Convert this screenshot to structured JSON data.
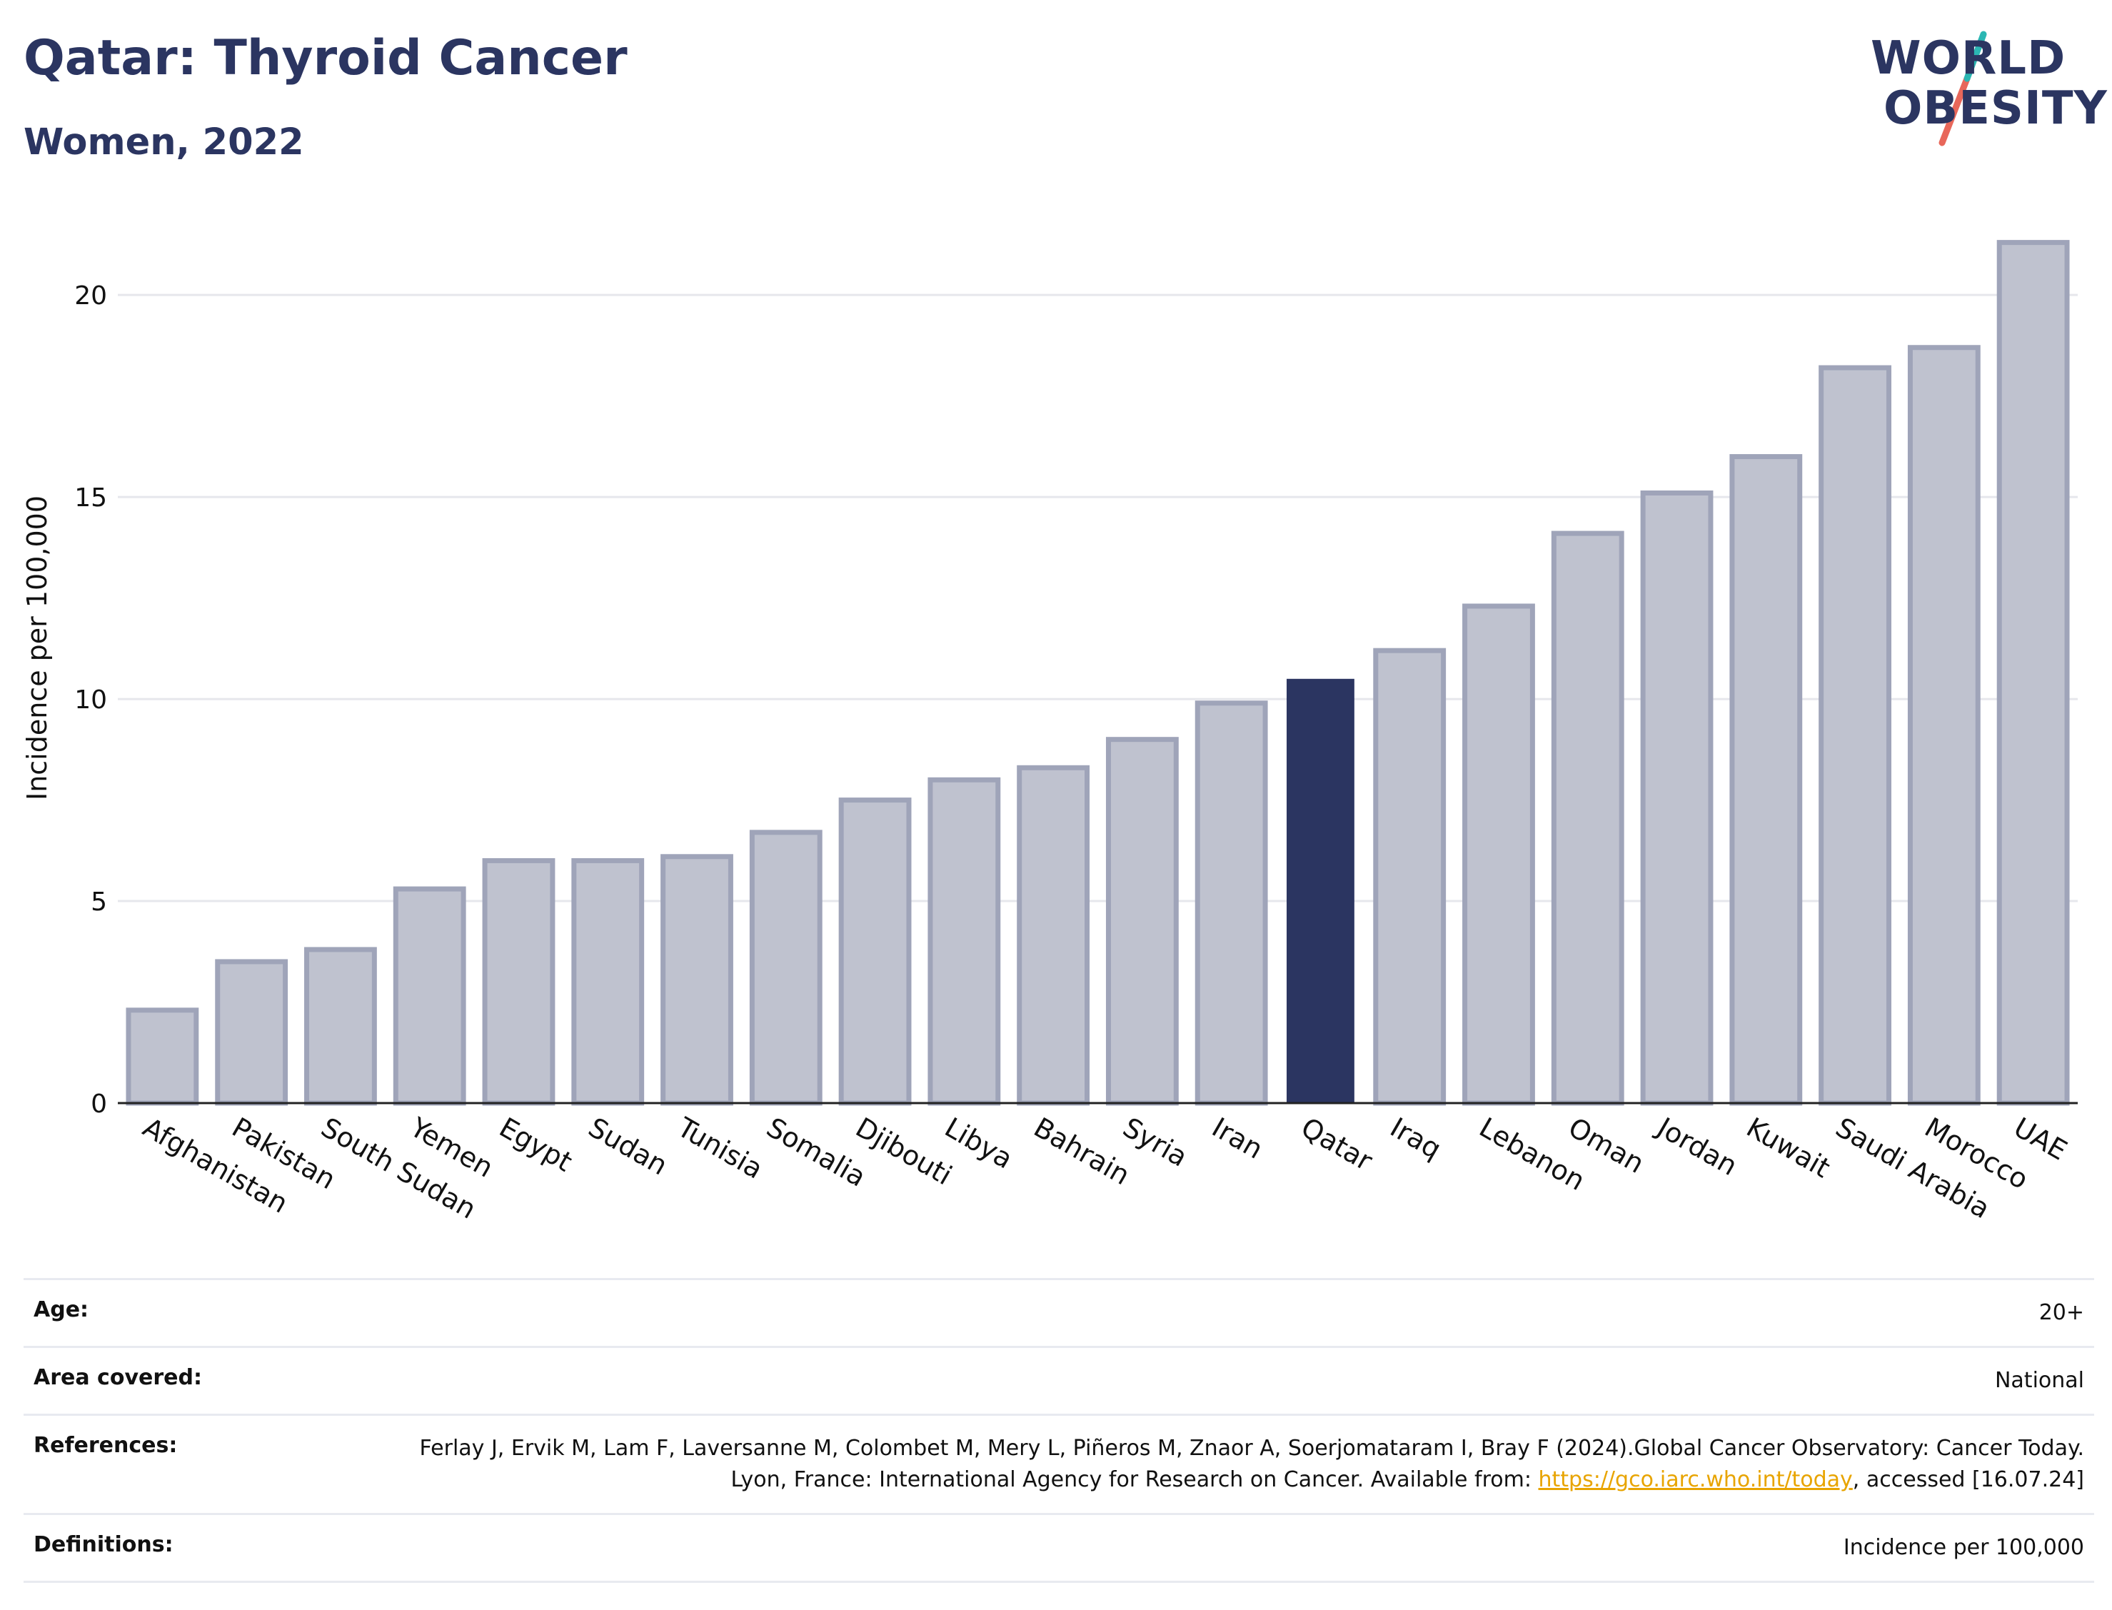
{
  "header": {
    "title": "Qatar: Thyroid Cancer",
    "subtitle": "Women, 2022"
  },
  "logo": {
    "line1": "WORLD",
    "line2": "OBESITY"
  },
  "chart_data": {
    "type": "bar",
    "categories": [
      "Afghanistan",
      "Pakistan",
      "South Sudan",
      "Yemen",
      "Egypt",
      "Sudan",
      "Tunisia",
      "Somalia",
      "Djibouti",
      "Libya",
      "Bahrain",
      "Syria",
      "Iran",
      "Qatar",
      "Iraq",
      "Lebanon",
      "Oman",
      "Jordan",
      "Kuwait",
      "Saudi Arabia",
      "Morocco",
      "UAE"
    ],
    "values": [
      2.3,
      3.5,
      3.8,
      5.3,
      6.0,
      6.0,
      6.1,
      6.7,
      7.5,
      8.0,
      8.3,
      9.0,
      9.9,
      10.5,
      11.2,
      12.3,
      14.1,
      15.1,
      16.0,
      18.2,
      18.7,
      21.3
    ],
    "highlight": "Qatar",
    "ylabel": "Incidence per 100,000",
    "xlabel": "",
    "ylim": [
      0,
      22
    ],
    "yticks": [
      0,
      5,
      10,
      15,
      20
    ],
    "grid": true,
    "colors": {
      "bar": "#bfc2cf",
      "bar_border": "#9fa4b9",
      "highlight": "#2b3561"
    }
  },
  "meta": {
    "age_label": "Age:",
    "age_value": "20+",
    "area_label": "Area covered:",
    "area_value": "National",
    "references_label": "References:",
    "references_text_1": "Ferlay J, Ervik M, Lam F, Laversanne M, Colombet M, Mery L, Piñeros M, Znaor A, Soerjomataram I, Bray F (2024).Global Cancer Observatory: Cancer Today. Lyon, France: International Agency for Research on Cancer. Available from: ",
    "references_link": "https://gco.iarc.who.int/today",
    "references_text_2": ", accessed [16.07.24]",
    "definitions_label": "Definitions:",
    "definitions_value": "Incidence per 100,000"
  }
}
